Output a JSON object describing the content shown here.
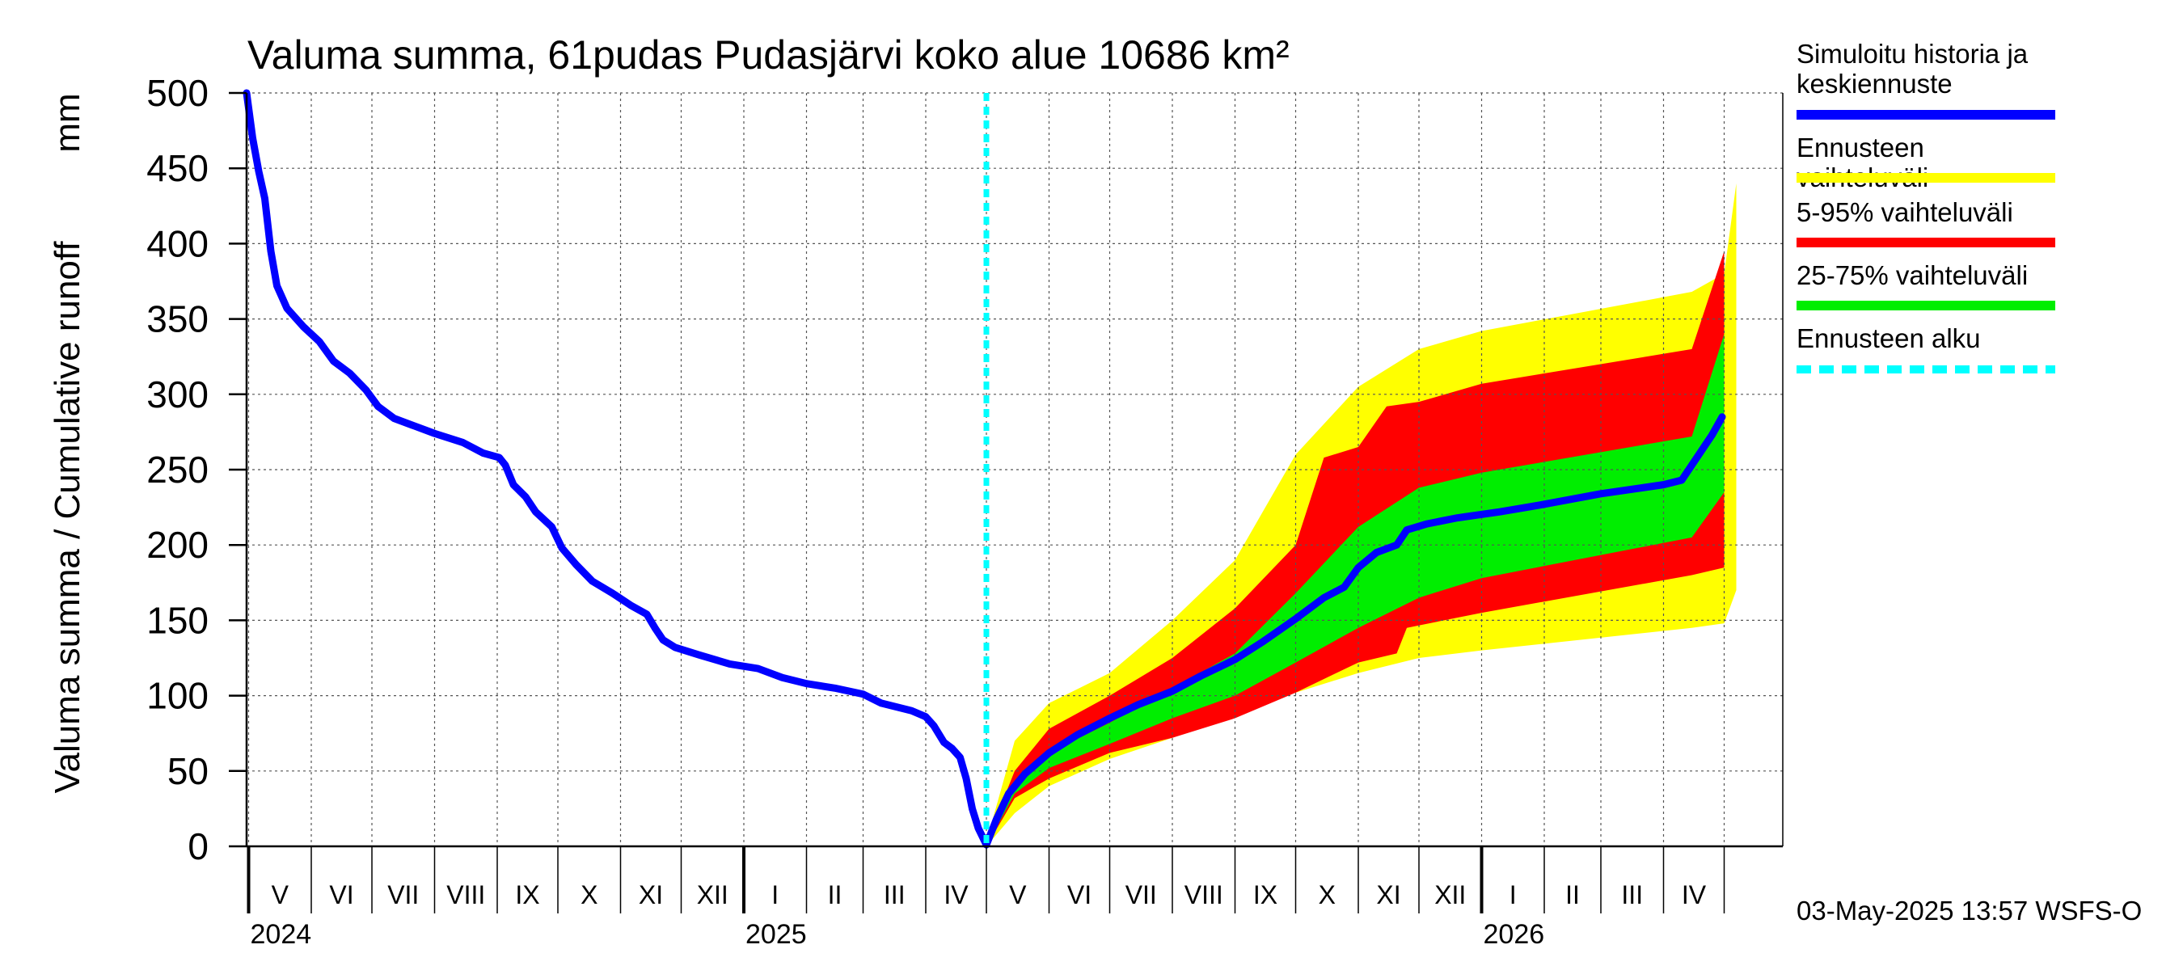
{
  "chart_data": {
    "type": "area",
    "title": "Valuma summa, 61pudas Pudasjärvi koko alue 10686 km²",
    "ylabel": "Valuma summa / Cumulative runoff",
    "yunit": "mm",
    "ylim": [
      0,
      500
    ],
    "yticks": [
      0,
      50,
      100,
      150,
      200,
      250,
      300,
      350,
      400,
      450,
      500
    ],
    "xlim": [
      "2024-04-30",
      "2026-05-30"
    ],
    "grid": true,
    "legend_position": "right",
    "month_labels": [
      "V",
      "VI",
      "VII",
      "VIII",
      "IX",
      "X",
      "XI",
      "XII",
      "I",
      "II",
      "III",
      "IV",
      "V",
      "VI",
      "VII",
      "VIII",
      "IX",
      "X",
      "XI",
      "XII",
      "I",
      "II",
      "III",
      "IV"
    ],
    "month_starts": [
      "2024-05-01",
      "2024-06-01",
      "2024-07-01",
      "2024-08-01",
      "2024-09-01",
      "2024-10-01",
      "2024-11-01",
      "2024-12-01",
      "2025-01-01",
      "2025-02-01",
      "2025-03-01",
      "2025-04-01",
      "2025-05-01",
      "2025-06-01",
      "2025-07-01",
      "2025-08-01",
      "2025-09-01",
      "2025-10-01",
      "2025-11-01",
      "2025-12-01",
      "2026-01-01",
      "2026-02-01",
      "2026-03-01",
      "2026-04-01",
      "2026-05-01"
    ],
    "year_labels": [
      {
        "label": "2024",
        "date": "2024-05-01"
      },
      {
        "label": "2025",
        "date": "2025-01-01"
      },
      {
        "label": "2026",
        "date": "2026-01-01"
      }
    ],
    "forecast_start": "2025-05-01",
    "series": [
      {
        "name": "Simuloitu historia ja keskiennuste",
        "color": "#0000ff",
        "kind": "line",
        "points": [
          [
            "2024-04-30",
            500
          ],
          [
            "2024-05-03",
            470
          ],
          [
            "2024-05-06",
            448
          ],
          [
            "2024-05-09",
            430
          ],
          [
            "2024-05-12",
            395
          ],
          [
            "2024-05-15",
            372
          ],
          [
            "2024-05-20",
            357
          ],
          [
            "2024-05-28",
            345
          ],
          [
            "2024-06-05",
            335
          ],
          [
            "2024-06-12",
            322
          ],
          [
            "2024-06-20",
            314
          ],
          [
            "2024-06-28",
            303
          ],
          [
            "2024-07-04",
            292
          ],
          [
            "2024-07-12",
            284
          ],
          [
            "2024-07-22",
            279
          ],
          [
            "2024-08-01",
            274
          ],
          [
            "2024-08-15",
            268
          ],
          [
            "2024-08-25",
            261
          ],
          [
            "2024-09-02",
            258
          ],
          [
            "2024-09-05",
            253
          ],
          [
            "2024-09-09",
            240
          ],
          [
            "2024-09-15",
            232
          ],
          [
            "2024-09-20",
            222
          ],
          [
            "2024-09-28",
            212
          ],
          [
            "2024-10-03",
            198
          ],
          [
            "2024-10-10",
            187
          ],
          [
            "2024-10-18",
            176
          ],
          [
            "2024-10-28",
            168
          ],
          [
            "2024-11-06",
            160
          ],
          [
            "2024-11-14",
            154
          ],
          [
            "2024-11-18",
            145
          ],
          [
            "2024-11-22",
            137
          ],
          [
            "2024-11-28",
            132
          ],
          [
            "2024-12-10",
            127
          ],
          [
            "2024-12-25",
            121
          ],
          [
            "2025-01-08",
            118
          ],
          [
            "2025-01-20",
            112
          ],
          [
            "2025-02-01",
            108
          ],
          [
            "2025-02-15",
            105
          ],
          [
            "2025-03-01",
            101
          ],
          [
            "2025-03-10",
            95
          ],
          [
            "2025-03-25",
            90
          ],
          [
            "2025-04-01",
            86
          ],
          [
            "2025-04-05",
            80
          ],
          [
            "2025-04-10",
            69
          ],
          [
            "2025-04-14",
            65
          ],
          [
            "2025-04-18",
            59
          ],
          [
            "2025-04-21",
            45
          ],
          [
            "2025-04-24",
            25
          ],
          [
            "2025-04-27",
            12
          ],
          [
            "2025-05-01",
            1
          ],
          [
            "2025-05-06",
            18
          ],
          [
            "2025-05-12",
            35
          ],
          [
            "2025-05-20",
            48
          ],
          [
            "2025-06-01",
            62
          ],
          [
            "2025-06-15",
            74
          ],
          [
            "2025-07-01",
            85
          ],
          [
            "2025-07-15",
            94
          ],
          [
            "2025-08-01",
            103
          ],
          [
            "2025-08-15",
            113
          ],
          [
            "2025-09-01",
            124
          ],
          [
            "2025-09-15",
            136
          ],
          [
            "2025-10-01",
            151
          ],
          [
            "2025-10-15",
            165
          ],
          [
            "2025-10-25",
            172
          ],
          [
            "2025-11-01",
            185
          ],
          [
            "2025-11-10",
            195
          ],
          [
            "2025-11-20",
            200
          ],
          [
            "2025-11-25",
            210
          ],
          [
            "2025-12-05",
            214
          ],
          [
            "2025-12-20",
            218
          ],
          [
            "2026-01-10",
            222
          ],
          [
            "2026-02-01",
            227
          ],
          [
            "2026-03-01",
            234
          ],
          [
            "2026-04-01",
            240
          ],
          [
            "2026-04-10",
            243
          ],
          [
            "2026-04-15",
            253
          ],
          [
            "2026-04-20",
            263
          ],
          [
            "2026-04-25",
            273
          ],
          [
            "2026-04-30",
            285
          ]
        ]
      },
      {
        "name": "Ennusteen vaihteluväli",
        "color": "#ffff00",
        "kind": "band",
        "upper": [
          [
            "2025-05-01",
            3
          ],
          [
            "2025-05-15",
            70
          ],
          [
            "2025-06-01",
            95
          ],
          [
            "2025-07-01",
            115
          ],
          [
            "2025-08-01",
            150
          ],
          [
            "2025-09-01",
            190
          ],
          [
            "2025-10-01",
            260
          ],
          [
            "2025-11-01",
            305
          ],
          [
            "2025-12-01",
            330
          ],
          [
            "2026-01-01",
            342
          ],
          [
            "2026-04-15",
            368
          ],
          [
            "2026-05-01",
            380
          ],
          [
            "2026-05-07",
            440
          ]
        ],
        "lower": [
          [
            "2025-05-01",
            0
          ],
          [
            "2025-05-15",
            22
          ],
          [
            "2025-06-01",
            40
          ],
          [
            "2025-07-01",
            58
          ],
          [
            "2025-08-01",
            72
          ],
          [
            "2025-09-01",
            88
          ],
          [
            "2025-10-01",
            102
          ],
          [
            "2025-11-01",
            115
          ],
          [
            "2025-12-01",
            125
          ],
          [
            "2026-01-01",
            130
          ],
          [
            "2026-04-15",
            145
          ],
          [
            "2026-05-01",
            148
          ],
          [
            "2026-05-07",
            170
          ]
        ]
      },
      {
        "name": "5-95% vaihteluväli",
        "color": "#ff0000",
        "kind": "band",
        "upper": [
          [
            "2025-05-01",
            3
          ],
          [
            "2025-05-15",
            50
          ],
          [
            "2025-06-01",
            78
          ],
          [
            "2025-07-01",
            100
          ],
          [
            "2025-08-01",
            125
          ],
          [
            "2025-09-01",
            158
          ],
          [
            "2025-10-01",
            200
          ],
          [
            "2025-10-15",
            258
          ],
          [
            "2025-11-01",
            265
          ],
          [
            "2025-11-15",
            292
          ],
          [
            "2025-12-01",
            295
          ],
          [
            "2026-01-01",
            307
          ],
          [
            "2026-04-15",
            330
          ],
          [
            "2026-05-01",
            395
          ]
        ],
        "lower": [
          [
            "2025-05-01",
            0
          ],
          [
            "2025-05-15",
            32
          ],
          [
            "2025-06-01",
            45
          ],
          [
            "2025-07-01",
            62
          ],
          [
            "2025-08-01",
            72
          ],
          [
            "2025-09-01",
            85
          ],
          [
            "2025-10-01",
            102
          ],
          [
            "2025-11-01",
            122
          ],
          [
            "2025-11-20",
            128
          ],
          [
            "2025-11-25",
            145
          ],
          [
            "2026-01-01",
            155
          ],
          [
            "2026-04-15",
            180
          ],
          [
            "2026-05-01",
            185
          ]
        ]
      },
      {
        "name": "25-75% vaihteluväli",
        "color": "#00ee00",
        "kind": "band",
        "upper": [
          [
            "2025-05-01",
            2
          ],
          [
            "2025-05-15",
            40
          ],
          [
            "2025-06-01",
            62
          ],
          [
            "2025-07-01",
            82
          ],
          [
            "2025-08-01",
            105
          ],
          [
            "2025-09-01",
            128
          ],
          [
            "2025-10-01",
            168
          ],
          [
            "2025-11-01",
            212
          ],
          [
            "2025-12-01",
            238
          ],
          [
            "2026-01-01",
            248
          ],
          [
            "2026-04-15",
            272
          ],
          [
            "2026-05-01",
            340
          ]
        ],
        "lower": [
          [
            "2025-05-01",
            0
          ],
          [
            "2025-05-15",
            35
          ],
          [
            "2025-06-01",
            52
          ],
          [
            "2025-07-01",
            68
          ],
          [
            "2025-08-01",
            85
          ],
          [
            "2025-09-01",
            100
          ],
          [
            "2025-10-01",
            122
          ],
          [
            "2025-11-01",
            145
          ],
          [
            "2025-12-01",
            165
          ],
          [
            "2026-01-01",
            178
          ],
          [
            "2026-04-15",
            205
          ],
          [
            "2026-05-01",
            235
          ]
        ]
      },
      {
        "name": "Ennusteen alku",
        "color": "#00ffff",
        "kind": "vline-dotted",
        "date": "2025-05-01"
      }
    ]
  },
  "legend": {
    "items": [
      {
        "label": "Simuloitu historia ja keskiennuste",
        "color": "#0000ff",
        "style": "solid"
      },
      {
        "label": "Ennusteen vaihteluväli",
        "color": "#ffff00",
        "style": "solid"
      },
      {
        "label": "5-95% vaihteluväli",
        "color": "#ff0000",
        "style": "solid"
      },
      {
        "label": "25-75% vaihteluväli",
        "color": "#00ee00",
        "style": "solid"
      },
      {
        "label": "Ennusteen alku",
        "color": "#00ffff",
        "style": "dashed"
      }
    ]
  },
  "footer": {
    "timestamp": "03-May-2025 13:57 WSFS-O"
  }
}
